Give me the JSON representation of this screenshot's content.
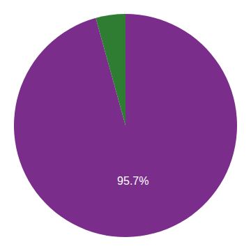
{
  "chart_data": {
    "type": "pie",
    "values": [
      95.7,
      4.3
    ],
    "colors": [
      "#7B2D8B",
      "#2E7D32"
    ],
    "value_labels": [
      "95.7%",
      null
    ],
    "data_labels": true
  }
}
